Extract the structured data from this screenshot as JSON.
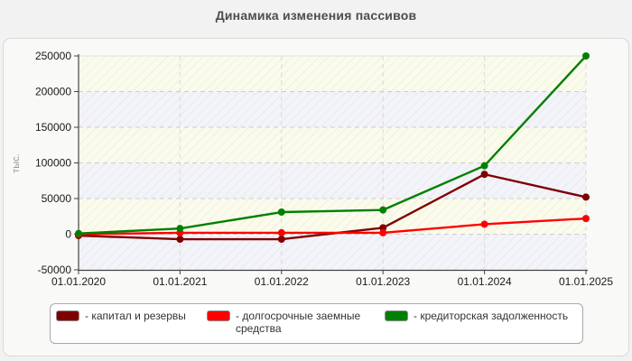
{
  "title": "Динамика изменения пассивов",
  "chart_data": {
    "type": "line",
    "title": "Динамика изменения пассивов",
    "xlabel": "",
    "ylabel": "тыс.",
    "categories": [
      "01.01.2020",
      "01.01.2021",
      "01.01.2022",
      "01.01.2023",
      "01.01.2024",
      "01.01.2025"
    ],
    "series": [
      {
        "name": "капитал и резервы",
        "color": "#7f0000",
        "values": [
          -2000,
          -7000,
          -7000,
          9000,
          84000,
          52000
        ]
      },
      {
        "name": "долгосрочные заемные средства",
        "color": "#ff0000",
        "values": [
          0,
          2000,
          2000,
          2000,
          14000,
          22000
        ]
      },
      {
        "name": "кредиторская задолженность",
        "color": "#008000",
        "values": [
          1000,
          8000,
          31000,
          34000,
          96000,
          250000
        ]
      }
    ],
    "ylim": [
      -50000,
      250000
    ],
    "ytick_step": 50000,
    "yticks": [
      250000,
      200000,
      150000,
      100000,
      50000,
      0,
      -50000
    ],
    "grid": true,
    "legend_position": "bottom",
    "colors": {
      "page_bg": "#f2f2f2",
      "panel_bg": "#f9f9f7",
      "panel_border": "#d9d9d9",
      "band_cream": "#fbfbec",
      "band_blue": "#f3f3fa",
      "grid_line": "#cccccc",
      "axis_line": "#444444",
      "tick_text": "#1a1a1a",
      "ylabel_text": "#999999",
      "title_text": "#4d4d4d",
      "legend_bg": "#ffffff",
      "legend_border": "#a9a9a9",
      "legend_text": "#333333"
    }
  },
  "legend": {
    "items": [
      {
        "label": "- капитал и резервы"
      },
      {
        "label": "- долгосрочные заемные средства"
      },
      {
        "label": "- кредиторская задолженность"
      }
    ]
  }
}
